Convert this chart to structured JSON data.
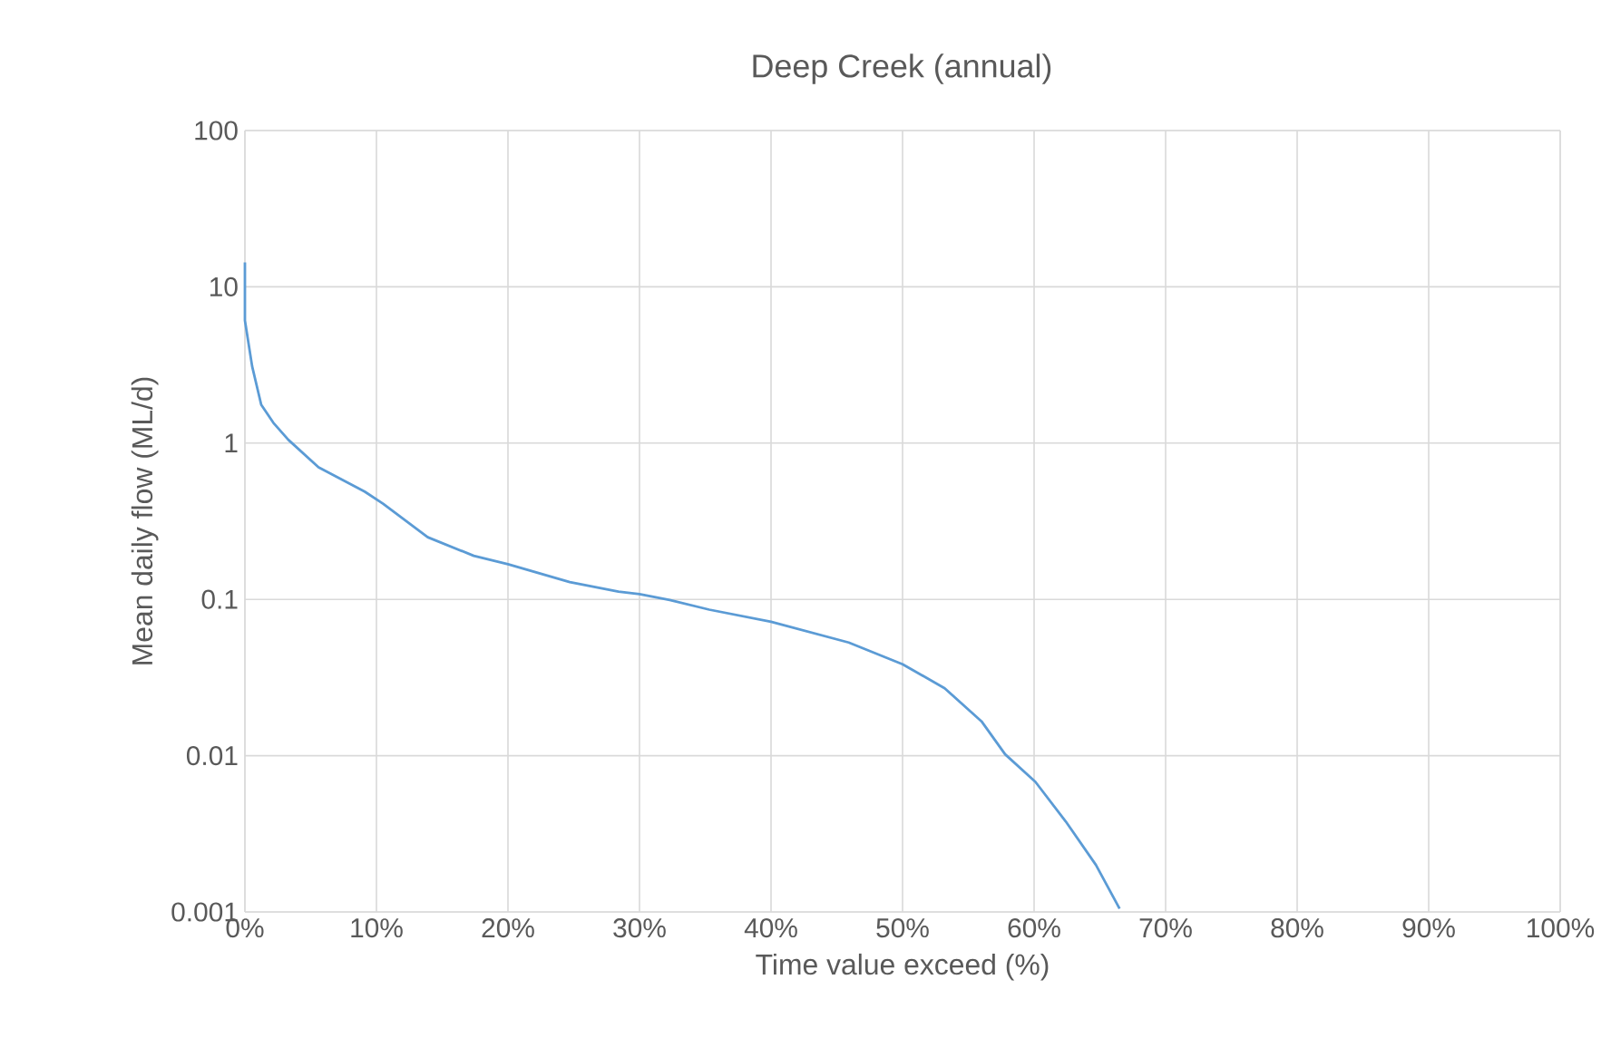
{
  "chart_data": {
    "type": "line",
    "title": "Deep Creek (annual)",
    "xlabel": "Time value exceed (%)",
    "ylabel": "Mean daily flow (ML/d)",
    "x": [
      0,
      0,
      0.55,
      1.24,
      2.16,
      3.3,
      5.6,
      9.1,
      10.5,
      13.9,
      17.4,
      20,
      24.7,
      28.4,
      30,
      32.3,
      35.3,
      40,
      45.9,
      50,
      53.2,
      56,
      57.8,
      60.1,
      62.4,
      64.7,
      66.5
    ],
    "series": [
      {
        "color": "#5b9bd5",
        "values": [
          14.3,
          6.1,
          3.1,
          1.76,
          1.35,
          1.05,
          0.7,
          0.49,
          0.41,
          0.25,
          0.19,
          0.168,
          0.129,
          0.112,
          0.108,
          0.099,
          0.086,
          0.072,
          0.053,
          0.0385,
          0.027,
          0.0166,
          0.0102,
          0.0068,
          0.0038,
          0.002,
          0.00105
        ]
      }
    ],
    "xlim": [
      0,
      100
    ],
    "xticks": [
      {
        "value": 0,
        "label": "0%"
      },
      {
        "value": 10,
        "label": "10%"
      },
      {
        "value": 20,
        "label": "20%"
      },
      {
        "value": 30,
        "label": "30%"
      },
      {
        "value": 40,
        "label": "40%"
      },
      {
        "value": 50,
        "label": "50%"
      },
      {
        "value": 60,
        "label": "60%"
      },
      {
        "value": 70,
        "label": "70%"
      },
      {
        "value": 80,
        "label": "80%"
      },
      {
        "value": 90,
        "label": "90%"
      },
      {
        "value": 100,
        "label": "100%"
      }
    ],
    "ylim": [
      0.001,
      100
    ],
    "yticks": [
      0.001,
      0.01,
      0.1,
      1,
      10,
      100
    ],
    "log": "y",
    "grid": true,
    "marker": "none",
    "line_style": "solid"
  }
}
